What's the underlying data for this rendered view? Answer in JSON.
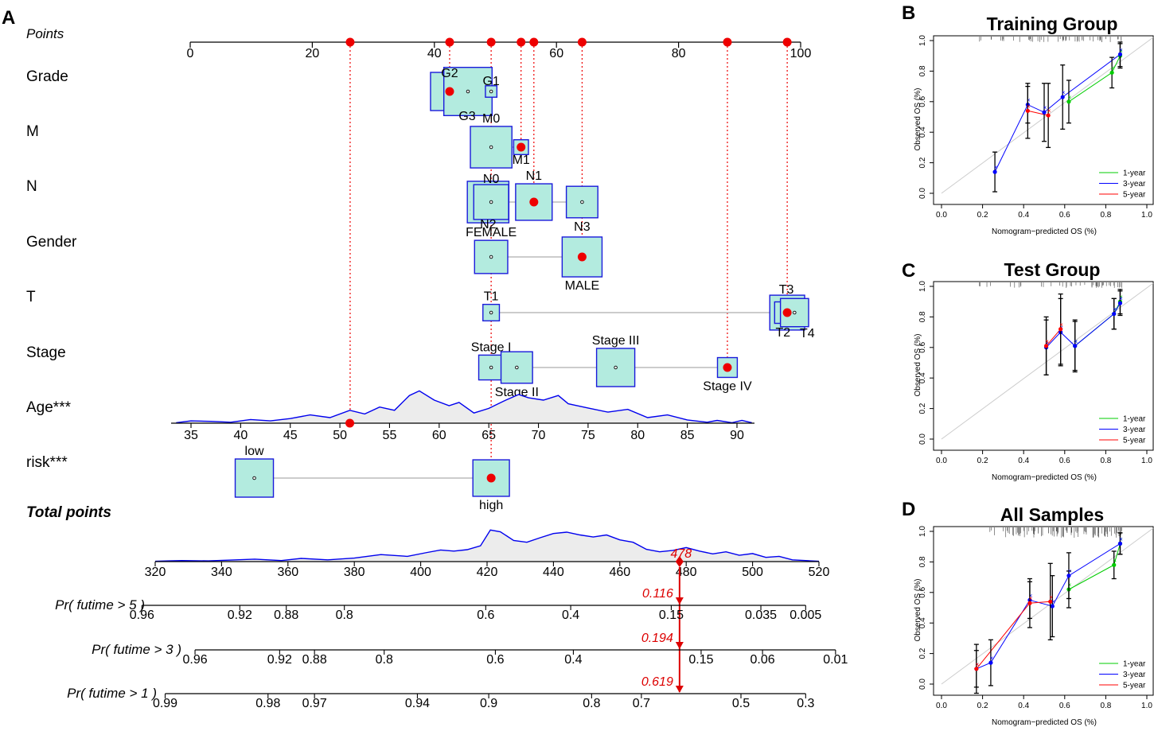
{
  "panel_letters": {
    "a": "A",
    "b": "B",
    "c": "C",
    "d": "D"
  },
  "colors": {
    "box_fill": "#b3ebdf",
    "box_stroke": "#1a1adb",
    "point": "#ee0000",
    "dotted": "#ee0000",
    "density_fill": "#ececec",
    "density_line": "#0000ee",
    "arrow": "#dd0000",
    "cal_1y": "#00cc00",
    "cal_3y": "#0000ff",
    "cal_5y": "#ff0000",
    "diag": "#cccccc"
  },
  "chart_data": [
    {
      "type": "nomogram",
      "points_axis": {
        "label": "Points",
        "min": 0,
        "max": 100,
        "ticks": [
          0,
          20,
          40,
          60,
          80,
          100
        ]
      },
      "selected_points": [
        26.2,
        42.5,
        49.3,
        54.2,
        56.3,
        64.2,
        88.0,
        97.8
      ],
      "variables": [
        {
          "name": "Grade",
          "levels": [
            {
              "label": "G2",
              "points": 42.5,
              "size": 1.0,
              "label_pos": "above",
              "selected": true
            },
            {
              "label": "G3",
              "points": 45.5,
              "size": 1.3,
              "label_pos": "below",
              "selected": false
            },
            {
              "label": "G1",
              "points": 49.3,
              "size": 0.2,
              "label_pos": "above",
              "selected": false
            }
          ]
        },
        {
          "name": "M",
          "levels": [
            {
              "label": "M0",
              "points": 49.3,
              "size": 1.1,
              "label_pos": "above",
              "selected": false
            },
            {
              "label": "M1",
              "points": 54.2,
              "size": 0.3,
              "label_pos": "below",
              "selected": true
            }
          ]
        },
        {
          "name": "N",
          "levels": [
            {
              "label": "N2",
              "points": 48.8,
              "size": 1.1,
              "label_pos": "below",
              "selected": false
            },
            {
              "label": "N0",
              "points": 49.3,
              "size": 0.9,
              "label_pos": "above",
              "selected": false
            },
            {
              "label": "N1",
              "points": 56.3,
              "size": 0.95,
              "label_pos": "above",
              "selected": true
            },
            {
              "label": "N3",
              "points": 64.2,
              "size": 0.8,
              "label_pos": "below",
              "selected": false
            }
          ]
        },
        {
          "name": "Gender",
          "levels": [
            {
              "label": "FEMALE",
              "points": 49.3,
              "size": 0.85,
              "label_pos": "above",
              "selected": false
            },
            {
              "label": "MALE",
              "points": 64.2,
              "size": 1.05,
              "label_pos": "below",
              "selected": true
            }
          ]
        },
        {
          "name": "T",
          "levels": [
            {
              "label": "T1",
              "points": 49.3,
              "size": 0.35,
              "label_pos": "above",
              "selected": false
            },
            {
              "label": "T3",
              "points": 97.8,
              "size": 0.9,
              "label_pos": "above",
              "selected": true
            },
            {
              "label": "T2",
              "points": 97.5,
              "size": 0.5,
              "label_pos": "below",
              "selected": false
            },
            {
              "label": "T4",
              "points": 99.0,
              "size": 0.7,
              "label_pos": "below",
              "selected": false
            }
          ]
        },
        {
          "name": "Stage",
          "levels": [
            {
              "label": "Stage I",
              "points": 49.3,
              "size": 0.6,
              "label_pos": "above",
              "selected": false
            },
            {
              "label": "Stage II",
              "points": 53.5,
              "size": 0.8,
              "label_pos": "below",
              "selected": false
            },
            {
              "label": "Stage III",
              "points": 69.7,
              "size": 1.0,
              "label_pos": "above",
              "selected": false
            },
            {
              "label": "Stage IV",
              "points": 88.0,
              "size": 0.45,
              "label_pos": "below",
              "selected": true
            }
          ]
        }
      ],
      "age": {
        "name": "Age***",
        "ticks": [
          35,
          40,
          45,
          50,
          55,
          60,
          65,
          70,
          75,
          80,
          85,
          90
        ],
        "selected": 51,
        "density": [
          [
            33.5,
            0.01
          ],
          [
            35,
            0.05
          ],
          [
            37,
            0.04
          ],
          [
            39,
            0.02
          ],
          [
            41,
            0.08
          ],
          [
            43,
            0.05
          ],
          [
            45,
            0.1
          ],
          [
            47,
            0.18
          ],
          [
            49,
            0.12
          ],
          [
            51,
            0.28
          ],
          [
            52.5,
            0.2
          ],
          [
            54,
            0.35
          ],
          [
            55.5,
            0.28
          ],
          [
            57,
            0.6
          ],
          [
            58,
            0.7
          ],
          [
            59.5,
            0.5
          ],
          [
            61,
            0.38
          ],
          [
            62,
            0.45
          ],
          [
            63.5,
            0.22
          ],
          [
            65,
            0.32
          ],
          [
            66.5,
            0.48
          ],
          [
            68,
            0.62
          ],
          [
            69,
            0.55
          ],
          [
            70.5,
            0.5
          ],
          [
            72,
            0.6
          ],
          [
            73,
            0.42
          ],
          [
            75,
            0.33
          ],
          [
            77,
            0.24
          ],
          [
            79,
            0.3
          ],
          [
            81,
            0.12
          ],
          [
            83,
            0.18
          ],
          [
            85,
            0.07
          ],
          [
            87,
            0.02
          ],
          [
            88,
            0.06
          ],
          [
            89.5,
            0.01
          ],
          [
            90.5,
            0.06
          ],
          [
            91.5,
            0.01
          ]
        ]
      },
      "risk": {
        "name": "risk***",
        "levels": [
          {
            "label": "low",
            "points": 10.5,
            "size": 1.0,
            "label_pos": "above",
            "selected": false
          },
          {
            "label": "high",
            "points": 49.3,
            "size": 0.95,
            "label_pos": "below",
            "selected": true
          }
        ]
      },
      "total_points": {
        "label": "Total points",
        "ticks": [
          320,
          340,
          360,
          380,
          400,
          420,
          440,
          460,
          480,
          500,
          520
        ],
        "value": 478,
        "value_label": "478",
        "density": [
          [
            320,
            0.01
          ],
          [
            324,
            0.02
          ],
          [
            328,
            0.03
          ],
          [
            336,
            0.02
          ],
          [
            342,
            0.04
          ],
          [
            350,
            0.07
          ],
          [
            358,
            0.03
          ],
          [
            364,
            0.09
          ],
          [
            372,
            0.05
          ],
          [
            380,
            0.1
          ],
          [
            388,
            0.2
          ],
          [
            396,
            0.15
          ],
          [
            402,
            0.26
          ],
          [
            406,
            0.33
          ],
          [
            410,
            0.3
          ],
          [
            414,
            0.34
          ],
          [
            418,
            0.45
          ],
          [
            421,
            0.9
          ],
          [
            424,
            0.85
          ],
          [
            428,
            0.6
          ],
          [
            432,
            0.55
          ],
          [
            436,
            0.68
          ],
          [
            440,
            0.8
          ],
          [
            444,
            0.84
          ],
          [
            448,
            0.76
          ],
          [
            452,
            0.7
          ],
          [
            456,
            0.76
          ],
          [
            460,
            0.62
          ],
          [
            464,
            0.55
          ],
          [
            468,
            0.35
          ],
          [
            472,
            0.28
          ],
          [
            476,
            0.32
          ],
          [
            480,
            0.4
          ],
          [
            484,
            0.3
          ],
          [
            488,
            0.22
          ],
          [
            492,
            0.28
          ],
          [
            496,
            0.18
          ],
          [
            500,
            0.23
          ],
          [
            504,
            0.12
          ],
          [
            508,
            0.15
          ],
          [
            512,
            0.05
          ],
          [
            516,
            0.03
          ],
          [
            520,
            0.01
          ]
        ]
      },
      "prob_axes": [
        {
          "label": "Pr( futime > 5 )",
          "value": 0.116,
          "value_label": "0.116",
          "ticks": [
            {
              "label": "0.96",
              "tp": 316.0
            },
            {
              "label": "0.92",
              "tp": 345.5
            },
            {
              "label": "0.88",
              "tp": 359.5
            },
            {
              "label": "0.8",
              "tp": 377.0
            },
            {
              "label": "0.6",
              "tp": 419.6
            },
            {
              "label": "0.4",
              "tp": 445.2
            },
            {
              "label": "0.15",
              "tp": 475.5
            },
            {
              "label": "0.035",
              "tp": 502.5
            },
            {
              "label": "0.005",
              "tp": 516.0
            }
          ]
        },
        {
          "label": "Pr( futime > 3 )",
          "value": 0.194,
          "value_label": "0.194",
          "ticks": [
            {
              "label": "0.96",
              "tp": 332.0
            },
            {
              "label": "0.92",
              "tp": 357.5
            },
            {
              "label": "0.88",
              "tp": 368.0
            },
            {
              "label": "0.8",
              "tp": 389.0
            },
            {
              "label": "0.6",
              "tp": 422.5
            },
            {
              "label": "0.4",
              "tp": 446.0
            },
            {
              "label": "0.15",
              "tp": 484.5
            },
            {
              "label": "0.06",
              "tp": 503.0
            },
            {
              "label": "0.01",
              "tp": 525.0
            }
          ]
        },
        {
          "label": "Pr( futime > 1 )",
          "value": 0.619,
          "value_label": "0.619",
          "ticks": [
            {
              "label": "0.99",
              "tp": 323.0
            },
            {
              "label": "0.98",
              "tp": 354.0
            },
            {
              "label": "0.97",
              "tp": 368.0
            },
            {
              "label": "0.94",
              "tp": 399.0
            },
            {
              "label": "0.9",
              "tp": 420.5
            },
            {
              "label": "0.8",
              "tp": 451.5
            },
            {
              "label": "0.7",
              "tp": 466.5
            },
            {
              "label": "0.5",
              "tp": 496.5
            },
            {
              "label": "0.3",
              "tp": 516.0
            }
          ]
        }
      ]
    },
    {
      "type": "calibration",
      "panel": "B",
      "title": "Training Group",
      "xlabel": "Nomogram−predicted OS (%)",
      "ylabel": "Observed OS (%)",
      "xlim": [
        0,
        1
      ],
      "ylim": [
        0,
        1
      ],
      "ticks": [
        "0.0",
        "0.2",
        "0.4",
        "0.6",
        "0.8",
        "1.0"
      ],
      "rug_density": 0.55,
      "series": [
        {
          "name": "1-year",
          "color": "#00cc00",
          "x": [
            0.62,
            0.83,
            0.87
          ],
          "y": [
            0.6,
            0.79,
            0.9
          ],
          "err": [
            0.14,
            0.1,
            0.08
          ]
        },
        {
          "name": "3-year",
          "color": "#0000ff",
          "x": [
            0.26,
            0.42,
            0.5,
            0.59,
            0.87
          ],
          "y": [
            0.14,
            0.58,
            0.53,
            0.63,
            0.91
          ],
          "err": [
            0.13,
            0.12,
            0.19,
            0.21,
            0.08
          ]
        },
        {
          "name": "5-year",
          "color": "#ff0000",
          "x": [
            0.42,
            0.52
          ],
          "y": [
            0.54,
            0.51
          ],
          "err": [
            0.18,
            0.21
          ]
        }
      ]
    },
    {
      "type": "calibration",
      "panel": "C",
      "title": "Test Group",
      "xlabel": "Nomogram−predicted OS (%)",
      "ylabel": "Observed OS (%)",
      "xlim": [
        0,
        1
      ],
      "ylim": [
        0,
        1
      ],
      "ticks": [
        "0.0",
        "0.2",
        "0.4",
        "0.6",
        "0.8",
        "1.0"
      ],
      "rug_density": 0.5,
      "series": [
        {
          "name": "1-year",
          "color": "#00cc00",
          "x": [
            0.65,
            0.84,
            0.87
          ],
          "y": [
            0.61,
            0.82,
            0.9
          ],
          "err": [
            0.17,
            0.1,
            0.08
          ]
        },
        {
          "name": "3-year",
          "color": "#0000ff",
          "x": [
            0.51,
            0.58,
            0.65,
            0.84,
            0.87
          ],
          "y": [
            0.6,
            0.7,
            0.61,
            0.82,
            0.89
          ],
          "err": [
            0.18,
            0.22,
            0.16,
            0.1,
            0.08
          ]
        },
        {
          "name": "5-year",
          "color": "#ff0000",
          "x": [
            0.51,
            0.58
          ],
          "y": [
            0.61,
            0.72
          ],
          "err": [
            0.19,
            0.23
          ]
        }
      ]
    },
    {
      "type": "calibration",
      "panel": "D",
      "title": "All Samples",
      "xlabel": "Nomogram−predicted OS (%)",
      "ylabel": "Observed OS (%)",
      "xlim": [
        0,
        1
      ],
      "ylim": [
        0,
        1
      ],
      "ticks": [
        "0.0",
        "0.2",
        "0.4",
        "0.6",
        "0.8",
        "1.0"
      ],
      "rug_density": 1.0,
      "series": [
        {
          "name": "1-year",
          "color": "#00cc00",
          "x": [
            0.62,
            0.84,
            0.87
          ],
          "y": [
            0.62,
            0.78,
            0.92
          ],
          "err": [
            0.12,
            0.09,
            0.07
          ]
        },
        {
          "name": "3-year",
          "color": "#0000ff",
          "x": [
            0.17,
            0.24,
            0.43,
            0.54,
            0.62,
            0.87
          ],
          "y": [
            0.1,
            0.14,
            0.55,
            0.51,
            0.71,
            0.92
          ],
          "err": [
            0.12,
            0.15,
            0.12,
            0.2,
            0.15,
            0.07
          ]
        },
        {
          "name": "5-year",
          "color": "#ff0000",
          "x": [
            0.17,
            0.43,
            0.53
          ],
          "y": [
            0.1,
            0.53,
            0.54
          ],
          "err": [
            0.16,
            0.16,
            0.25
          ]
        }
      ]
    }
  ]
}
